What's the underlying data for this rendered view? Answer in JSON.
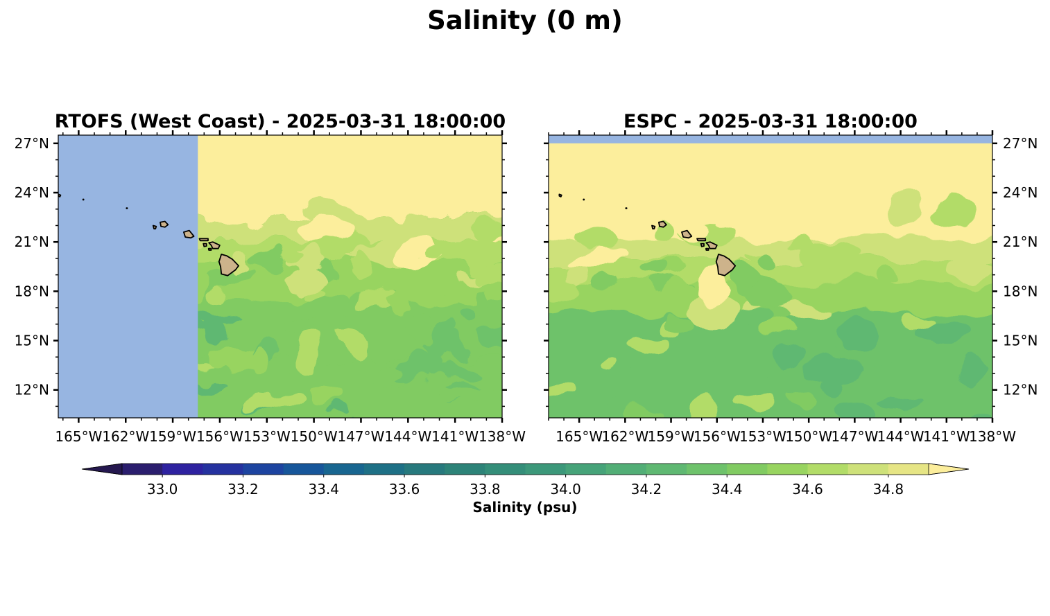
{
  "figure_title": "Salinity (0 m)",
  "colors": {
    "land": "#cdb38b",
    "nodata": "#97b5e1",
    "coastline": "#000000"
  },
  "chart_data": [
    {
      "type": "heatmap",
      "title": "RTOFS (West Coast) - 2025-03-31 18:00:00",
      "projection": "PlateCarree",
      "extent_lon": [
        -166.3,
        -138.0
      ],
      "extent_lat": [
        10.3,
        27.5
      ],
      "xticks": [
        -165,
        -162,
        -159,
        -156,
        -153,
        -150,
        -147,
        -144,
        -141,
        -138
      ],
      "xtick_labels": [
        "165°W",
        "162°W",
        "159°W",
        "156°W",
        "153°W",
        "150°W",
        "147°W",
        "144°W",
        "141°W",
        "138°W"
      ],
      "yticks": [
        12,
        15,
        18,
        21,
        24,
        27
      ],
      "ytick_labels": [
        "12°N",
        "15°N",
        "18°N",
        "21°N",
        "24°N",
        "27°N"
      ],
      "ytick_side": "left",
      "data_lon_range": [
        -157.4,
        -138.0
      ],
      "data_lat_range": [
        10.3,
        27.5
      ],
      "nodata_region": "west of 157.4°W",
      "salinity_pattern": "fresher (34.6–34.9) north of ~21°N with filamented eddies; saltier (34.2–34.5) to the south"
    },
    {
      "type": "heatmap",
      "title": "ESPC - 2025-03-31 18:00:00",
      "projection": "PlateCarree",
      "extent_lon": [
        -167.0,
        -138.0
      ],
      "extent_lat": [
        10.3,
        27.5
      ],
      "xticks": [
        -165,
        -162,
        -159,
        -156,
        -153,
        -150,
        -147,
        -144,
        -141,
        -138
      ],
      "xtick_labels": [
        "165°W",
        "162°W",
        "159°W",
        "156°W",
        "153°W",
        "150°W",
        "147°W",
        "144°W",
        "141°W",
        "138°W"
      ],
      "yticks": [
        12,
        15,
        18,
        21,
        24,
        27
      ],
      "ytick_labels": [
        "12°N",
        "15°N",
        "18°N",
        "21°N",
        "24°N",
        "27°N"
      ],
      "ytick_side": "right",
      "data_lon_range": [
        -167.0,
        -138.0
      ],
      "data_lat_range": [
        10.3,
        27.0
      ],
      "nodata_region": "north of 27°N",
      "salinity_pattern": "fresher (34.7–34.9) north of ~20°N; saltier (34.1–34.4) to the south, lowest in the southeast"
    }
  ],
  "colorbar": {
    "label": "Salinity (psu)",
    "vmin": 32.9,
    "vmax": 34.9,
    "levels": [
      32.9,
      33.0,
      33.1,
      33.2,
      33.3,
      33.4,
      33.5,
      33.6,
      33.7,
      33.8,
      33.9,
      34.0,
      34.1,
      34.2,
      34.3,
      34.4,
      34.5,
      34.6,
      34.7,
      34.8,
      34.9
    ],
    "colors": [
      "#2b1e6e",
      "#2e22a0",
      "#25329f",
      "#1d44a0",
      "#17569a",
      "#186690",
      "#1e7086",
      "#27797d",
      "#2d8378",
      "#348e79",
      "#3c987a",
      "#46a379",
      "#52ae76",
      "#5fb872",
      "#6ec26b",
      "#81cb62",
      "#98d460",
      "#b2dc68",
      "#cee17a",
      "#e6e585"
    ],
    "extend_min_color": "#25184f",
    "extend_max_color": "#fcee9c",
    "ticks": [
      33.0,
      33.2,
      33.4,
      33.6,
      33.8,
      34.0,
      34.2,
      34.4,
      34.6,
      34.8
    ],
    "tick_labels": [
      "33.0",
      "33.2",
      "33.4",
      "33.6",
      "33.8",
      "34.0",
      "34.2",
      "34.4",
      "34.6",
      "34.8"
    ]
  }
}
